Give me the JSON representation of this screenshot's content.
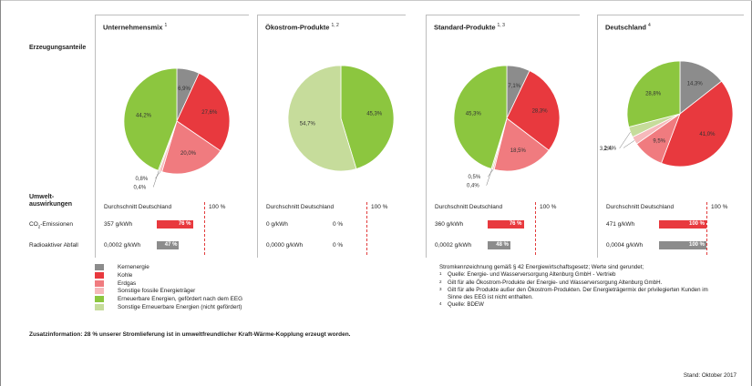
{
  "rows": {
    "shares_label": "Erzeugungsanteile",
    "impact_label_1": "Umwelt-",
    "impact_label_2": "auswirkungen",
    "co2_label_rest": "-Emissionen",
    "radio_label": "Radioaktiver Abfall"
  },
  "colors": {
    "kernenergie": "#8c8c8c",
    "kohle": "#e8393e",
    "erdgas": "#f07b7f",
    "sonstige_fossile": "#f6b9bb",
    "eeg": "#8cc63f",
    "sonstige_ee": "#c6dc9b",
    "bar_red": "#e8393e",
    "bar_grey": "#8c8c8c"
  },
  "legend": [
    {
      "key": "kernenergie",
      "label": "Kernenergie"
    },
    {
      "key": "kohle",
      "label": "Kohle"
    },
    {
      "key": "erdgas",
      "label": "Erdgas"
    },
    {
      "key": "sonstige_fossile",
      "label": "Sonstige fossile Energieträger"
    },
    {
      "key": "eeg",
      "label": "Erneuerbare Energien, gefördert nach dem EEG"
    },
    {
      "key": "sonstige_ee",
      "label": "Sonstige Erneuerbare Energien (nicht gefördert)"
    }
  ],
  "chart_data": [
    {
      "type": "pie",
      "title": "Unternehmensmix",
      "footnote": "1",
      "slices": [
        {
          "name": "Kernenergie",
          "key": "kernenergie",
          "value": 6.9,
          "label": "6,9%"
        },
        {
          "name": "Kohle",
          "key": "kohle",
          "value": 27.6,
          "label": "27,6%"
        },
        {
          "name": "Erdgas",
          "key": "erdgas",
          "value": 20.0,
          "label": "20,0%"
        },
        {
          "name": "Sonstige fossile Energieträger",
          "key": "sonstige_fossile",
          "value": 0.8,
          "label": "0,8%"
        },
        {
          "name": "Sonstige Erneuerbare Energien (nicht gefördert)",
          "key": "sonstige_ee",
          "value": 0.4,
          "label": "0,4%"
        },
        {
          "name": "Erneuerbare Energien, gefördert nach dem EEG",
          "key": "eeg",
          "value": 44.2,
          "label": "44,2%"
        }
      ],
      "impact": {
        "avg_label": "Durchschnitt Deutschland",
        "avg_value": "100 %",
        "co2_value": "357 g/kWh",
        "co2_percent": 76,
        "co2_percent_label": "76 %",
        "radio_value": "0,0002 g/kWh",
        "radio_percent": 47,
        "radio_percent_label": "47 %"
      }
    },
    {
      "type": "pie",
      "title": "Ökostrom-Produkte",
      "footnote": "1, 2",
      "slices": [
        {
          "name": "Erneuerbare Energien, gefördert nach dem EEG",
          "key": "eeg",
          "value": 45.3,
          "label": "45,3%"
        },
        {
          "name": "Sonstige Erneuerbare Energien (nicht gefördert)",
          "key": "sonstige_ee",
          "value": 54.7,
          "label": "54,7%"
        }
      ],
      "impact": {
        "avg_label": "Durchschnitt Deutschland",
        "avg_value": "100 %",
        "co2_value": "0 g/kWh",
        "co2_percent": 0,
        "co2_percent_label": "0 %",
        "radio_value": "0,0000 g/kWh",
        "radio_percent": 0,
        "radio_percent_label": "0 %"
      }
    },
    {
      "type": "pie",
      "title": "Standard-Produkte",
      "footnote": "1, 3",
      "slices": [
        {
          "name": "Kernenergie",
          "key": "kernenergie",
          "value": 7.1,
          "label": "7,1%"
        },
        {
          "name": "Kohle",
          "key": "kohle",
          "value": 28.3,
          "label": "28,3%"
        },
        {
          "name": "Erdgas",
          "key": "erdgas",
          "value": 18.5,
          "label": "18,5%"
        },
        {
          "name": "Sonstige fossile Energieträger",
          "key": "sonstige_fossile",
          "value": 0.5,
          "label": "0,5%"
        },
        {
          "name": "Sonstige Erneuerbare Energien (nicht gefördert)",
          "key": "sonstige_ee",
          "value": 0.4,
          "label": "0,4%"
        },
        {
          "name": "Erneuerbare Energien, gefördert nach dem EEG",
          "key": "eeg",
          "value": 45.3,
          "label": "45,3%"
        }
      ],
      "impact": {
        "avg_label": "Durchschnitt Deutschland",
        "avg_value": "100 %",
        "co2_value": "360 g/kWh",
        "co2_percent": 76,
        "co2_percent_label": "76 %",
        "radio_value": "0,0002 g/kWh",
        "radio_percent": 48,
        "radio_percent_label": "48 %"
      }
    },
    {
      "type": "pie",
      "title": "Deutschland",
      "footnote": "4",
      "slices": [
        {
          "name": "Kernenergie",
          "key": "kernenergie",
          "value": 14.3,
          "label": "14,3%"
        },
        {
          "name": "Kohle",
          "key": "kohle",
          "value": 41.0,
          "label": "41,0%"
        },
        {
          "name": "Erdgas",
          "key": "erdgas",
          "value": 9.5,
          "label": "9,5%"
        },
        {
          "name": "Sonstige fossile Energieträger",
          "key": "sonstige_fossile",
          "value": 2.4,
          "label": "2,4%"
        },
        {
          "name": "Sonstige Erneuerbare Energien (nicht gefördert)",
          "key": "sonstige_ee",
          "value": 3.2,
          "label": "3,2%"
        },
        {
          "name": "Erneuerbare Energien, gefördert nach dem EEG",
          "key": "eeg",
          "value": 28.8,
          "label": "28,8%"
        }
      ],
      "impact": {
        "avg_label": "Durchschnitt Deutschland",
        "avg_value": "100 %",
        "co2_value": "471 g/kWh",
        "co2_percent": 100,
        "co2_percent_label": "100 %",
        "radio_value": "0,0004 g/kWh",
        "radio_percent": 100,
        "radio_percent_label": "100 %"
      }
    }
  ],
  "notes": {
    "intro": "Stromkennzeichnung gemäß § 42 Energiewirtschaftsgesetz; Werte sind gerundet;",
    "n1_mark": "1",
    "n1": "Quelle: Energie- und Wasserversorgung Altenburg GmbH - Vertrieb",
    "n2_mark": "2",
    "n2": "Gilt für alle Ökostrom-Produkte der Energie- und Wasserversorgung Altenburg GmbH.",
    "n3_mark": "3",
    "n3": "Gilt für alle Produkte außer den Ökostrom-Produkten. Der Energieträgermix der privilegierten Kunden im Sinne des EEG ist nicht enthalten.",
    "n4_mark": "4",
    "n4": "Quelle: BDEW"
  },
  "footer": {
    "zusatz": "Zusatzinformation: 28 % unserer Stromlieferung ist in umweltfreundlicher Kraft-Wärme-Kopplung erzeugt worden.",
    "stand": "Stand: Oktober 2017"
  }
}
